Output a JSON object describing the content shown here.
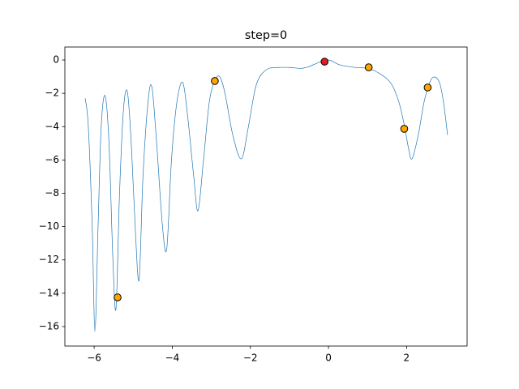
{
  "chart_data": {
    "type": "line",
    "title": "step=0",
    "xlim": [
      -6.75,
      3.55
    ],
    "ylim": [
      -17.17,
      0.78
    ],
    "xticks": [
      {
        "value": -6,
        "label": "−6"
      },
      {
        "value": -4,
        "label": "−4"
      },
      {
        "value": -2,
        "label": "−2"
      },
      0,
      2
    ],
    "yticks": [
      0,
      {
        "value": -2,
        "label": "−2"
      },
      {
        "value": -4,
        "label": "−4"
      },
      {
        "value": -6,
        "label": "−6"
      },
      {
        "value": -8,
        "label": "−8"
      },
      {
        "value": -10,
        "label": "−10"
      },
      {
        "value": -12,
        "label": "−12"
      },
      {
        "value": -14,
        "label": "−14"
      },
      {
        "value": -16,
        "label": "−16"
      }
    ],
    "series": [
      {
        "type": "line",
        "color": "#1f77b4",
        "x": [
          -6.23,
          -6.15,
          -6.05,
          -5.98,
          -5.9,
          -5.82,
          -5.72,
          -5.62,
          -5.52,
          -5.44,
          -5.35,
          -5.25,
          -5.15,
          -5.05,
          -4.95,
          -4.85,
          -4.75,
          -4.62,
          -4.52,
          -4.4,
          -4.25,
          -4.14,
          -4.02,
          -3.88,
          -3.73,
          -3.6,
          -3.45,
          -3.34,
          -3.2,
          -3.05,
          -2.9,
          -2.78,
          -2.65,
          -2.45,
          -2.23,
          -2.05,
          -1.85,
          -1.6,
          -1.3,
          -1.0,
          -0.7,
          -0.5,
          -0.3,
          0,
          0.3,
          0.7,
          1.0,
          1.3,
          1.6,
          1.8,
          1.95,
          2.05,
          2.14,
          2.3,
          2.45,
          2.6,
          2.72,
          2.85,
          2.95,
          3.05
        ],
        "values": [
          -2.3,
          -4.0,
          -10,
          -16.3,
          -10,
          -4,
          -2.14,
          -5,
          -12,
          -14.9,
          -8,
          -3,
          -1.9,
          -5,
          -10,
          -13.2,
          -7,
          -2.5,
          -1.65,
          -5,
          -10,
          -11.3,
          -6,
          -2.5,
          -1.36,
          -3.5,
          -7,
          -9.05,
          -6,
          -2.5,
          -1.2,
          -1.02,
          -2,
          -4.5,
          -5.93,
          -4,
          -1.5,
          -0.6,
          -0.45,
          -0.45,
          -0.5,
          -0.4,
          -0.2,
          0,
          -0.3,
          -0.45,
          -0.5,
          -0.8,
          -1.4,
          -2.5,
          -4.0,
          -5.3,
          -5.93,
          -4.5,
          -2.5,
          -1.3,
          -1.02,
          -1.4,
          -2.6,
          -4.5
        ]
      },
      {
        "type": "scatter",
        "color": "#ffa500",
        "x": [
          -5.4,
          -2.91,
          1.03,
          1.94,
          2.54
        ],
        "values": [
          -14.25,
          -1.26,
          -0.44,
          -4.13,
          -1.65
        ]
      },
      {
        "type": "scatter",
        "color": "#e41a1c",
        "x": [
          -0.1
        ],
        "values": [
          -0.1
        ]
      }
    ]
  }
}
